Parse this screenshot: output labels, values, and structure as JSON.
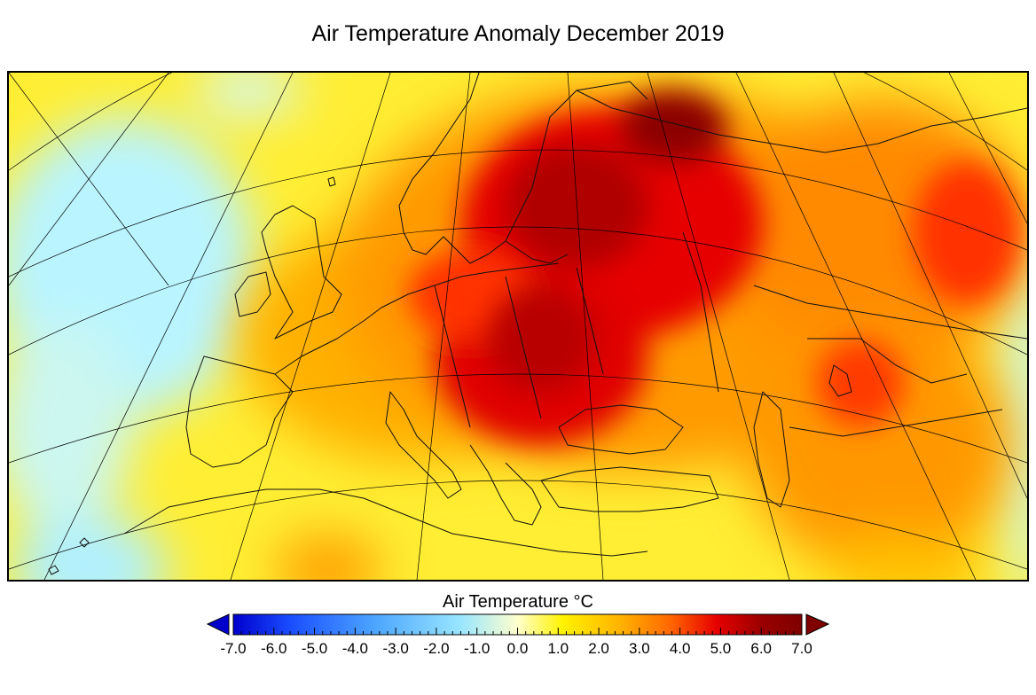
{
  "title": "Air Temperature Anomaly December 2019",
  "colorbar": {
    "title": "Air Temperature °C",
    "min": -7.0,
    "max": 7.0,
    "extend": "both",
    "ticks": [
      "-7.0",
      "-6.0",
      "-5.0",
      "-4.0",
      "-3.0",
      "-2.0",
      "-1.0",
      "0.0",
      "1.0",
      "2.0",
      "3.0",
      "4.0",
      "5.0",
      "6.0",
      "7.0"
    ],
    "colors": {
      "min_extend": "#0000cc",
      "max_extend": "#7f0000",
      "stops": [
        "#0000cc",
        "#1a4dff",
        "#4da6ff",
        "#99e6ff",
        "#ffffcc",
        "#fff200",
        "#ffb300",
        "#ff6600",
        "#e60000",
        "#990000",
        "#7f0000"
      ]
    }
  },
  "map": {
    "region": "Europe",
    "projection": "conic",
    "variable": "air temperature anomaly",
    "unit": "°C",
    "period": "December 2019",
    "icons": {
      "coastlines": "coastline-outline",
      "graticule": "graticule-lines"
    }
  }
}
